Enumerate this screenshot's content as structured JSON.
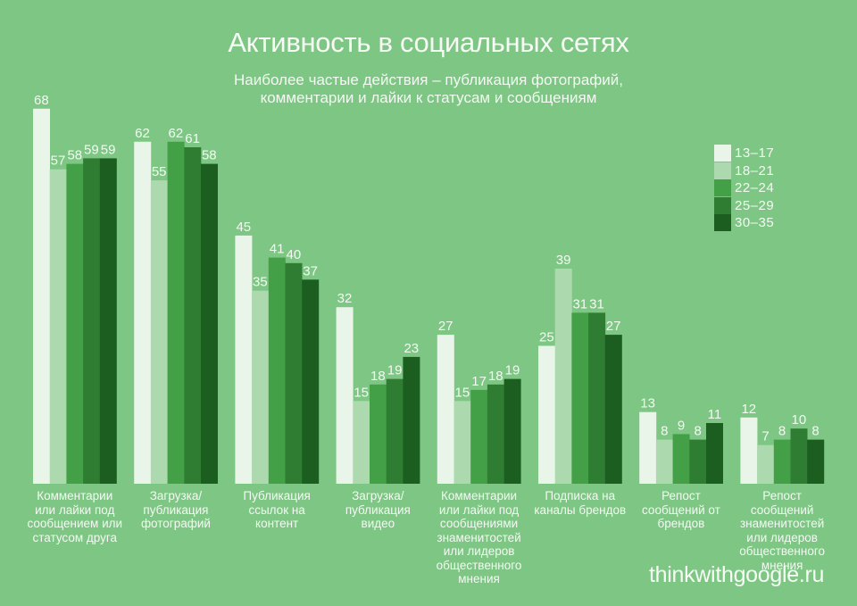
{
  "chart_data": {
    "type": "bar",
    "title": "Активность в социальных сетях",
    "subtitle": "Наиболее частые действия – публикация фотографий,\nкомментарии и лайки к статусам и сообщениям",
    "xlabel": "",
    "ylabel": "",
    "ylim": [
      0,
      70
    ],
    "grid": false,
    "legend_position": "right",
    "categories": [
      "Комментарии\nили лайки под\nсообщением или\nстатусом друга",
      "Загрузка/\nпубликация\nфотографий",
      "Публикация\nссылок на\nконтент",
      "Загрузка/\nпубликация\nвидео",
      "Комментарии\nили лайки под\nсообщениями\nзнаменитостей\nили лидеров\nобщественного\nмнения",
      "Подписка на\nканалы брендов",
      "Репост\nсообщений от\nбрендов",
      "Репост\nсообщений\nзнаменитостей\nили лидеров\nобщественного\nмнения"
    ],
    "series": [
      {
        "name": "13–17",
        "color": "#eaf5ea",
        "values": [
          68,
          62,
          45,
          32,
          27,
          25,
          13,
          12
        ]
      },
      {
        "name": "18–21",
        "color": "#acd9ae",
        "values": [
          57,
          55,
          35,
          15,
          15,
          39,
          8,
          7
        ]
      },
      {
        "name": "22–24",
        "color": "#43a047",
        "values": [
          58,
          62,
          41,
          18,
          17,
          31,
          9,
          8
        ]
      },
      {
        "name": "25–29",
        "color": "#2e7d32",
        "values": [
          59,
          61,
          40,
          19,
          18,
          31,
          8,
          10
        ]
      },
      {
        "name": "30–35",
        "color": "#1b5e20",
        "values": [
          59,
          58,
          37,
          23,
          19,
          27,
          11,
          8
        ]
      }
    ]
  },
  "footer": {
    "brand": "thinkwithgoogle.ru"
  }
}
